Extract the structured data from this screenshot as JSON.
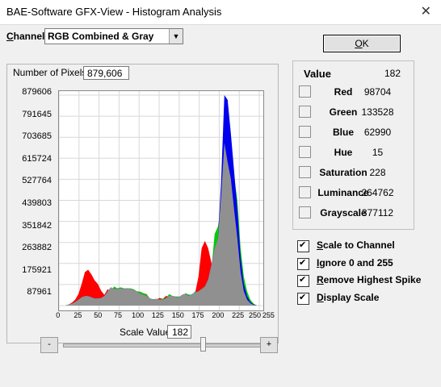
{
  "window": {
    "title": "BAE-Software GFX-View - Histogram Analysis",
    "close_glyph": "✕"
  },
  "channel": {
    "label_accel": "C",
    "label_rest": "hannel",
    "value": "RGB Combined & Gray"
  },
  "ok_button": {
    "accel": "O",
    "rest": "K"
  },
  "pixels": {
    "label": "Number of Pixels:",
    "value": "879,606"
  },
  "chart_data": {
    "type": "area",
    "y_ticks": [
      "879606",
      "791645",
      "703685",
      "615724",
      "527764",
      "439803",
      "351842",
      "263882",
      "175921",
      "87961"
    ],
    "x_ticks": [
      "0",
      "25",
      "50",
      "75",
      "100",
      "125",
      "150",
      "175",
      "200",
      "225",
      "250",
      "255"
    ],
    "xlim": [
      0,
      255
    ],
    "ylim": [
      0,
      879606
    ],
    "grid": true,
    "series": [
      {
        "color": "#ff0000",
        "values": [
          0,
          0,
          0,
          4000,
          12000,
          25000,
          48000,
          90000,
          140000,
          150000,
          130000,
          105000,
          90000,
          62000,
          45000,
          68000,
          58000,
          42000,
          32000,
          38000,
          22000,
          25000,
          30000,
          42000,
          55000,
          58000,
          52000,
          48000,
          30000,
          26000,
          24000,
          32000,
          28000,
          40000,
          38000,
          30000,
          32000,
          32000,
          30000,
          36000,
          42000,
          38000,
          55000,
          120000,
          240000,
          270000,
          240000,
          180000,
          70000,
          60000,
          70000,
          60000,
          280000,
          330000,
          300000,
          230000,
          160000,
          80000,
          22000,
          8000,
          0,
          0,
          0,
          0
        ]
      },
      {
        "color": "#00cc00",
        "values": [
          0,
          0,
          0,
          0,
          0,
          0,
          0,
          0,
          0,
          0,
          0,
          0,
          0,
          0,
          0,
          20000,
          60000,
          80000,
          72000,
          76000,
          72000,
          72000,
          72000,
          68000,
          60000,
          58000,
          52000,
          46000,
          30000,
          26000,
          28000,
          26000,
          28000,
          32000,
          48000,
          40000,
          38000,
          38000,
          36000,
          52000,
          46000,
          45000,
          60000,
          55000,
          70000,
          75000,
          100000,
          150000,
          300000,
          330000,
          420000,
          560000,
          750000,
          660000,
          540000,
          440000,
          240000,
          120000,
          60000,
          25000,
          8000,
          0,
          0,
          0
        ]
      },
      {
        "color": "#0000ee",
        "values": [
          0,
          0,
          0,
          4000,
          8000,
          15000,
          25000,
          35000,
          40000,
          40000,
          35000,
          30000,
          30000,
          32000,
          40000,
          60000,
          76000,
          70000,
          70000,
          72000,
          70000,
          72000,
          70000,
          65000,
          60000,
          50000,
          45000,
          40000,
          30000,
          26000,
          28000,
          25000,
          25000,
          30000,
          42000,
          40000,
          35000,
          35000,
          45000,
          50000,
          40000,
          48000,
          55000,
          60000,
          70000,
          80000,
          110000,
          170000,
          240000,
          280000,
          520000,
          879606,
          860000,
          720000,
          560000,
          400000,
          200000,
          90000,
          40000,
          15000,
          5000,
          0,
          0,
          0
        ]
      },
      {
        "color": "#909090",
        "values": [
          0,
          0,
          0,
          4000,
          8000,
          15000,
          25000,
          35000,
          40000,
          40000,
          35000,
          30000,
          30000,
          32000,
          40000,
          60000,
          76000,
          70000,
          70000,
          72000,
          70000,
          72000,
          70000,
          65000,
          60000,
          50000,
          45000,
          40000,
          30000,
          26000,
          28000,
          25000,
          25000,
          30000,
          42000,
          40000,
          35000,
          35000,
          45000,
          50000,
          40000,
          48000,
          55000,
          60000,
          70000,
          80000,
          110000,
          170000,
          240000,
          280000,
          460000,
          680000,
          600000,
          530000,
          400000,
          280000,
          140000,
          60000,
          25000,
          10000,
          3000,
          0,
          0,
          0
        ]
      }
    ]
  },
  "scale": {
    "label": "Scale Value:",
    "value": "182",
    "minus": "-",
    "plus": "+",
    "level": 0.71
  },
  "values_panel": {
    "title": "Value",
    "value": "182",
    "rows": [
      {
        "label": "Red",
        "value": "98704"
      },
      {
        "label": "Green",
        "value": "133528"
      },
      {
        "label": "Blue",
        "value": "62990"
      },
      {
        "label": "Hue",
        "value": "15"
      },
      {
        "label": "Saturation",
        "value": "228"
      },
      {
        "label": "Luminance",
        "value": "264762"
      },
      {
        "label": "Grayscale",
        "value": "377112"
      }
    ]
  },
  "options": [
    {
      "accel": "S",
      "rest": "cale to Channel",
      "checked": true
    },
    {
      "accel": "I",
      "rest": "gnore 0 and 255",
      "checked": true
    },
    {
      "accel": "R",
      "rest": "emove Highest Spike",
      "checked": true
    },
    {
      "accel": "D",
      "rest": "isplay Scale",
      "checked": true
    }
  ]
}
